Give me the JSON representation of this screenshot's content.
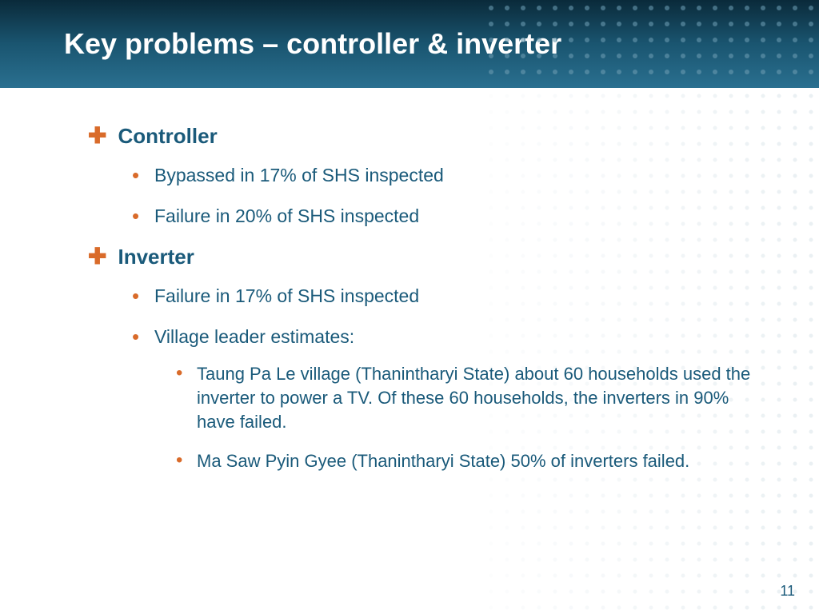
{
  "colors": {
    "header_gradient_top": "#0a2a3a",
    "header_gradient_mid": "#1a5570",
    "header_gradient_bottom": "#2a7090",
    "title_text": "#ffffff",
    "accent": "#d96b2a",
    "body_text": "#1a5a7a",
    "background": "#ffffff",
    "dot_light": "#c8d8e0",
    "dot_header": "#5a8aa0"
  },
  "typography": {
    "family": "Verdana",
    "title_size_pt": 28,
    "heading_size_pt": 20,
    "body_size_pt": 17,
    "sub_size_pt": 16
  },
  "slide": {
    "title": "Key problems – controller & inverter",
    "page_number": "11",
    "sections": [
      {
        "heading": "Controller",
        "bullets": [
          "Bypassed in 17% of SHS inspected",
          "Failure in 20% of SHS inspected"
        ],
        "sub_bullets": []
      },
      {
        "heading": "Inverter",
        "bullets": [
          "Failure in 17% of SHS inspected",
          "Village leader estimates:"
        ],
        "sub_bullets": [
          "Taung Pa Le village (Thanintharyi State) about 60 households used the inverter to power a TV. Of these 60 households, the inverters in 90% have failed.",
          "Ma Saw Pyin Gyee (Thanintharyi State) 50% of inverters failed."
        ]
      }
    ]
  }
}
